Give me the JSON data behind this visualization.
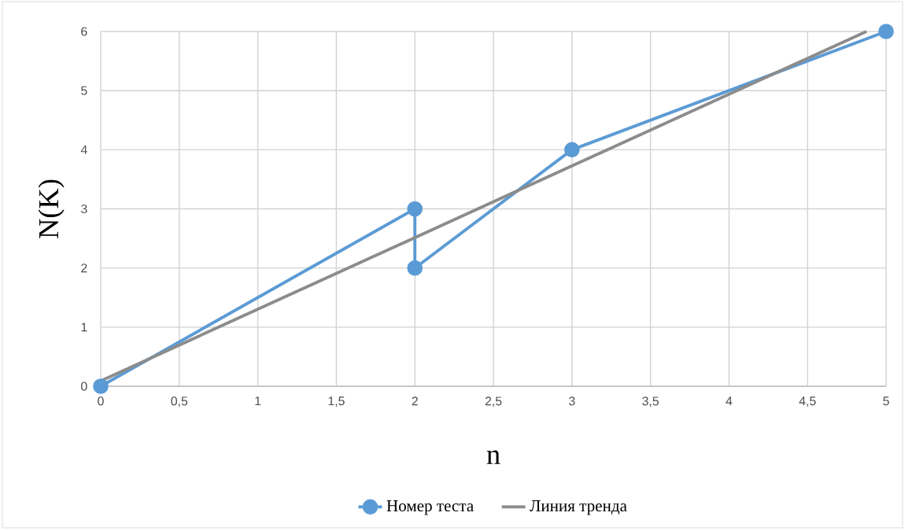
{
  "chart_data": {
    "type": "line",
    "xlabel": "n",
    "ylabel": "N(K)",
    "series": [
      {
        "name": "Номер теста",
        "color": "#5b9bd5",
        "x": [
          0,
          2,
          2,
          3,
          5
        ],
        "values": [
          0,
          3,
          2,
          4,
          6
        ],
        "marker": "circle"
      },
      {
        "name": "Линия тренда",
        "color": "#8c8c8c",
        "type": "line",
        "x": [
          0,
          4.875
        ],
        "values": [
          0.09,
          6
        ],
        "marker": "none"
      }
    ],
    "xlim": [
      0,
      5
    ],
    "ylim": [
      0,
      6
    ],
    "xticks": [
      0,
      {
        "value": 0.5,
        "label": "0,5"
      },
      1,
      {
        "value": 1.5,
        "label": "1,5"
      },
      2,
      {
        "value": 2.5,
        "label": "2,5"
      },
      3,
      {
        "value": 3.5,
        "label": "3,5"
      },
      4,
      {
        "value": 4.5,
        "label": "4,5"
      },
      5
    ],
    "yticks": [
      0,
      1,
      2,
      3,
      4,
      5,
      6
    ],
    "grid": true,
    "legend": "bottom",
    "line_style": "solid"
  }
}
